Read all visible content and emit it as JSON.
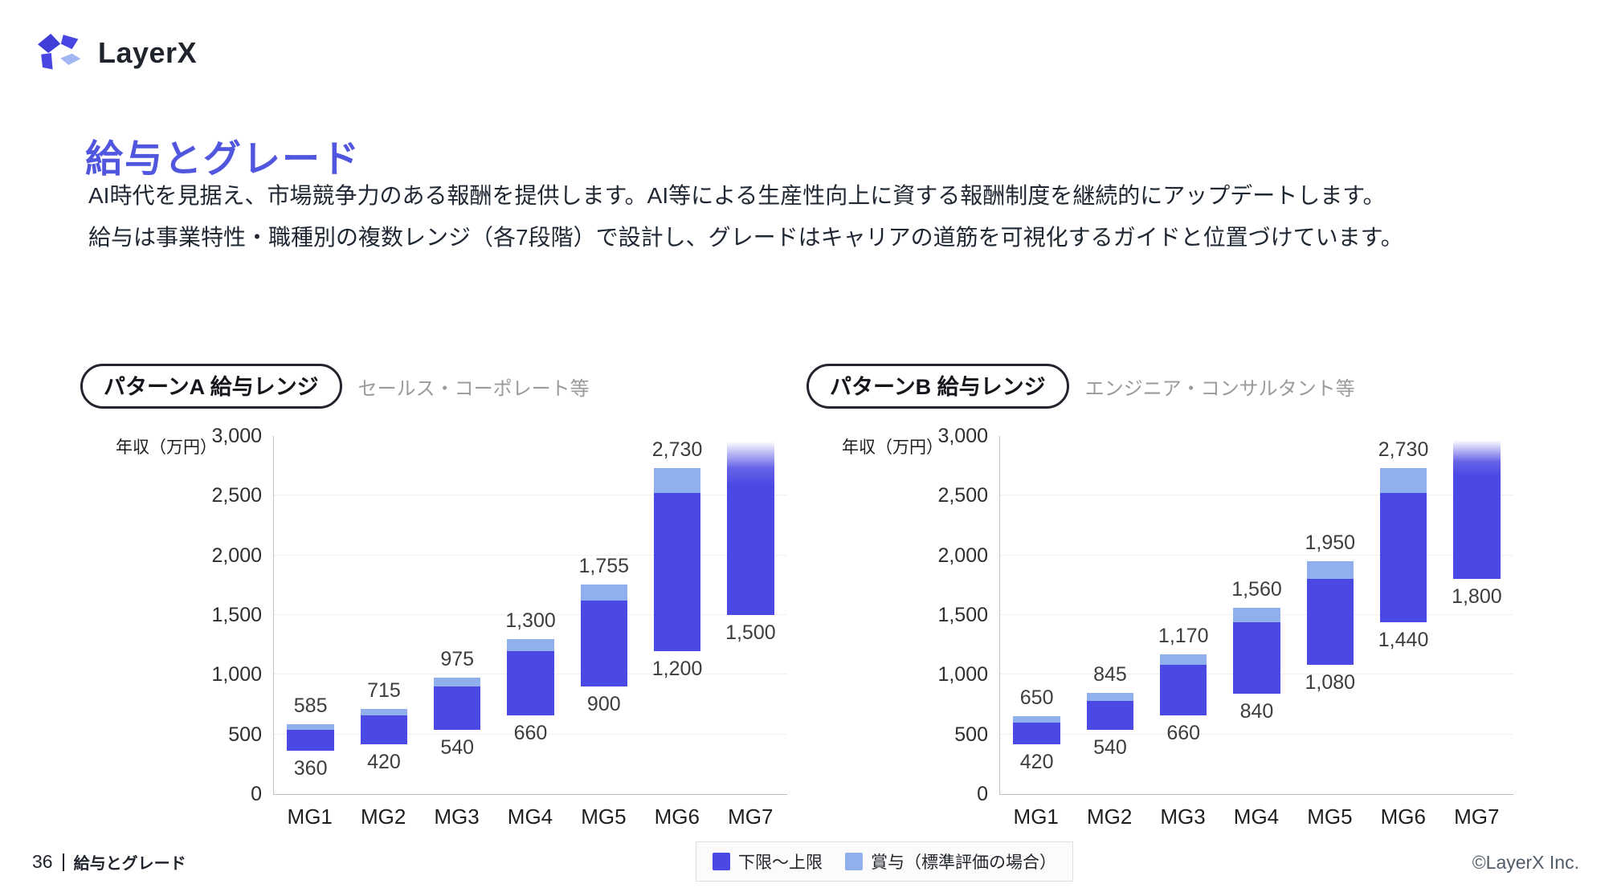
{
  "logo": {
    "text": "LayerX"
  },
  "page": {
    "title": "給与とグレード",
    "body_line1": "AI時代を見据え、市場競争力のある報酬を提供します。AI等による生産性向上に資する報酬制度を継続的にアップデートします。",
    "body_line2": "給与は事業特性・職種別の複数レンジ（各7段階）で設計し、グレードはキャリアの道筋を可視化するガイドと位置づけています。"
  },
  "colors": {
    "accent_title": "#5156df",
    "bar_range": "#4b48e4",
    "bar_bonus": "#8fb0ed"
  },
  "chart_data": [
    {
      "type": "bar",
      "title": "パターンA 給与レンジ",
      "subtitle": "セールス・コーポレート等",
      "ylabel": "年収（万円）",
      "ylim": [
        0,
        3000
      ],
      "yticks": [
        0,
        500,
        1000,
        1500,
        2000,
        2500,
        3000
      ],
      "grid": true,
      "categories": [
        "MG1",
        "MG2",
        "MG3",
        "MG4",
        "MG5",
        "MG6",
        "MG7"
      ],
      "series": [
        {
          "name": "下限〜上限",
          "color": "#4b48e4",
          "ranges": [
            [
              360,
              540
            ],
            [
              420,
              660
            ],
            [
              540,
              900
            ],
            [
              660,
              1200
            ],
            [
              900,
              1620
            ],
            [
              1200,
              2520
            ],
            [
              1500,
              3000
            ]
          ]
        },
        {
          "name": "賞与（標準評価の場合）",
          "color": "#8fb0ed",
          "ranges": [
            [
              540,
              585
            ],
            [
              660,
              715
            ],
            [
              900,
              975
            ],
            [
              1200,
              1300
            ],
            [
              1620,
              1755
            ],
            [
              2520,
              2730
            ],
            null
          ]
        }
      ],
      "bar_labels_top": [
        "585",
        "715",
        "975",
        "1,300",
        "1,755",
        "2,730",
        null
      ],
      "bar_labels_bottom": [
        "360",
        "420",
        "540",
        "660",
        "900",
        "1,200",
        "1,500"
      ],
      "fade_last_bar": true
    },
    {
      "type": "bar",
      "title": "パターンB 給与レンジ",
      "subtitle": "エンジニア・コンサルタント等",
      "ylabel": "年収（万円）",
      "ylim": [
        0,
        3000
      ],
      "yticks": [
        0,
        500,
        1000,
        1500,
        2000,
        2500,
        3000
      ],
      "grid": true,
      "categories": [
        "MG1",
        "MG2",
        "MG3",
        "MG4",
        "MG5",
        "MG6",
        "MG7"
      ],
      "series": [
        {
          "name": "下限〜上限",
          "color": "#4b48e4",
          "ranges": [
            [
              420,
              600
            ],
            [
              540,
              780
            ],
            [
              660,
              1080
            ],
            [
              840,
              1440
            ],
            [
              1080,
              1800
            ],
            [
              1440,
              2520
            ],
            [
              1800,
              3000
            ]
          ]
        },
        {
          "name": "賞与（標準評価の場合）",
          "color": "#8fb0ed",
          "ranges": [
            [
              600,
              650
            ],
            [
              780,
              845
            ],
            [
              1080,
              1170
            ],
            [
              1440,
              1560
            ],
            [
              1800,
              1950
            ],
            [
              2520,
              2730
            ],
            null
          ]
        }
      ],
      "bar_labels_top": [
        "650",
        "845",
        "1,170",
        "1,560",
        "1,950",
        "2,730",
        null
      ],
      "bar_labels_bottom": [
        "420",
        "540",
        "660",
        "840",
        "1,080",
        "1,440",
        "1,800"
      ],
      "fade_last_bar": true
    }
  ],
  "footer": {
    "page_number": "36",
    "section": "給与とグレード",
    "legend": [
      {
        "label": "下限〜上限",
        "color": "#4b48e4"
      },
      {
        "label": "賞与（標準評価の場合）",
        "color": "#8fb0ed"
      }
    ],
    "copyright": "©LayerX Inc."
  }
}
